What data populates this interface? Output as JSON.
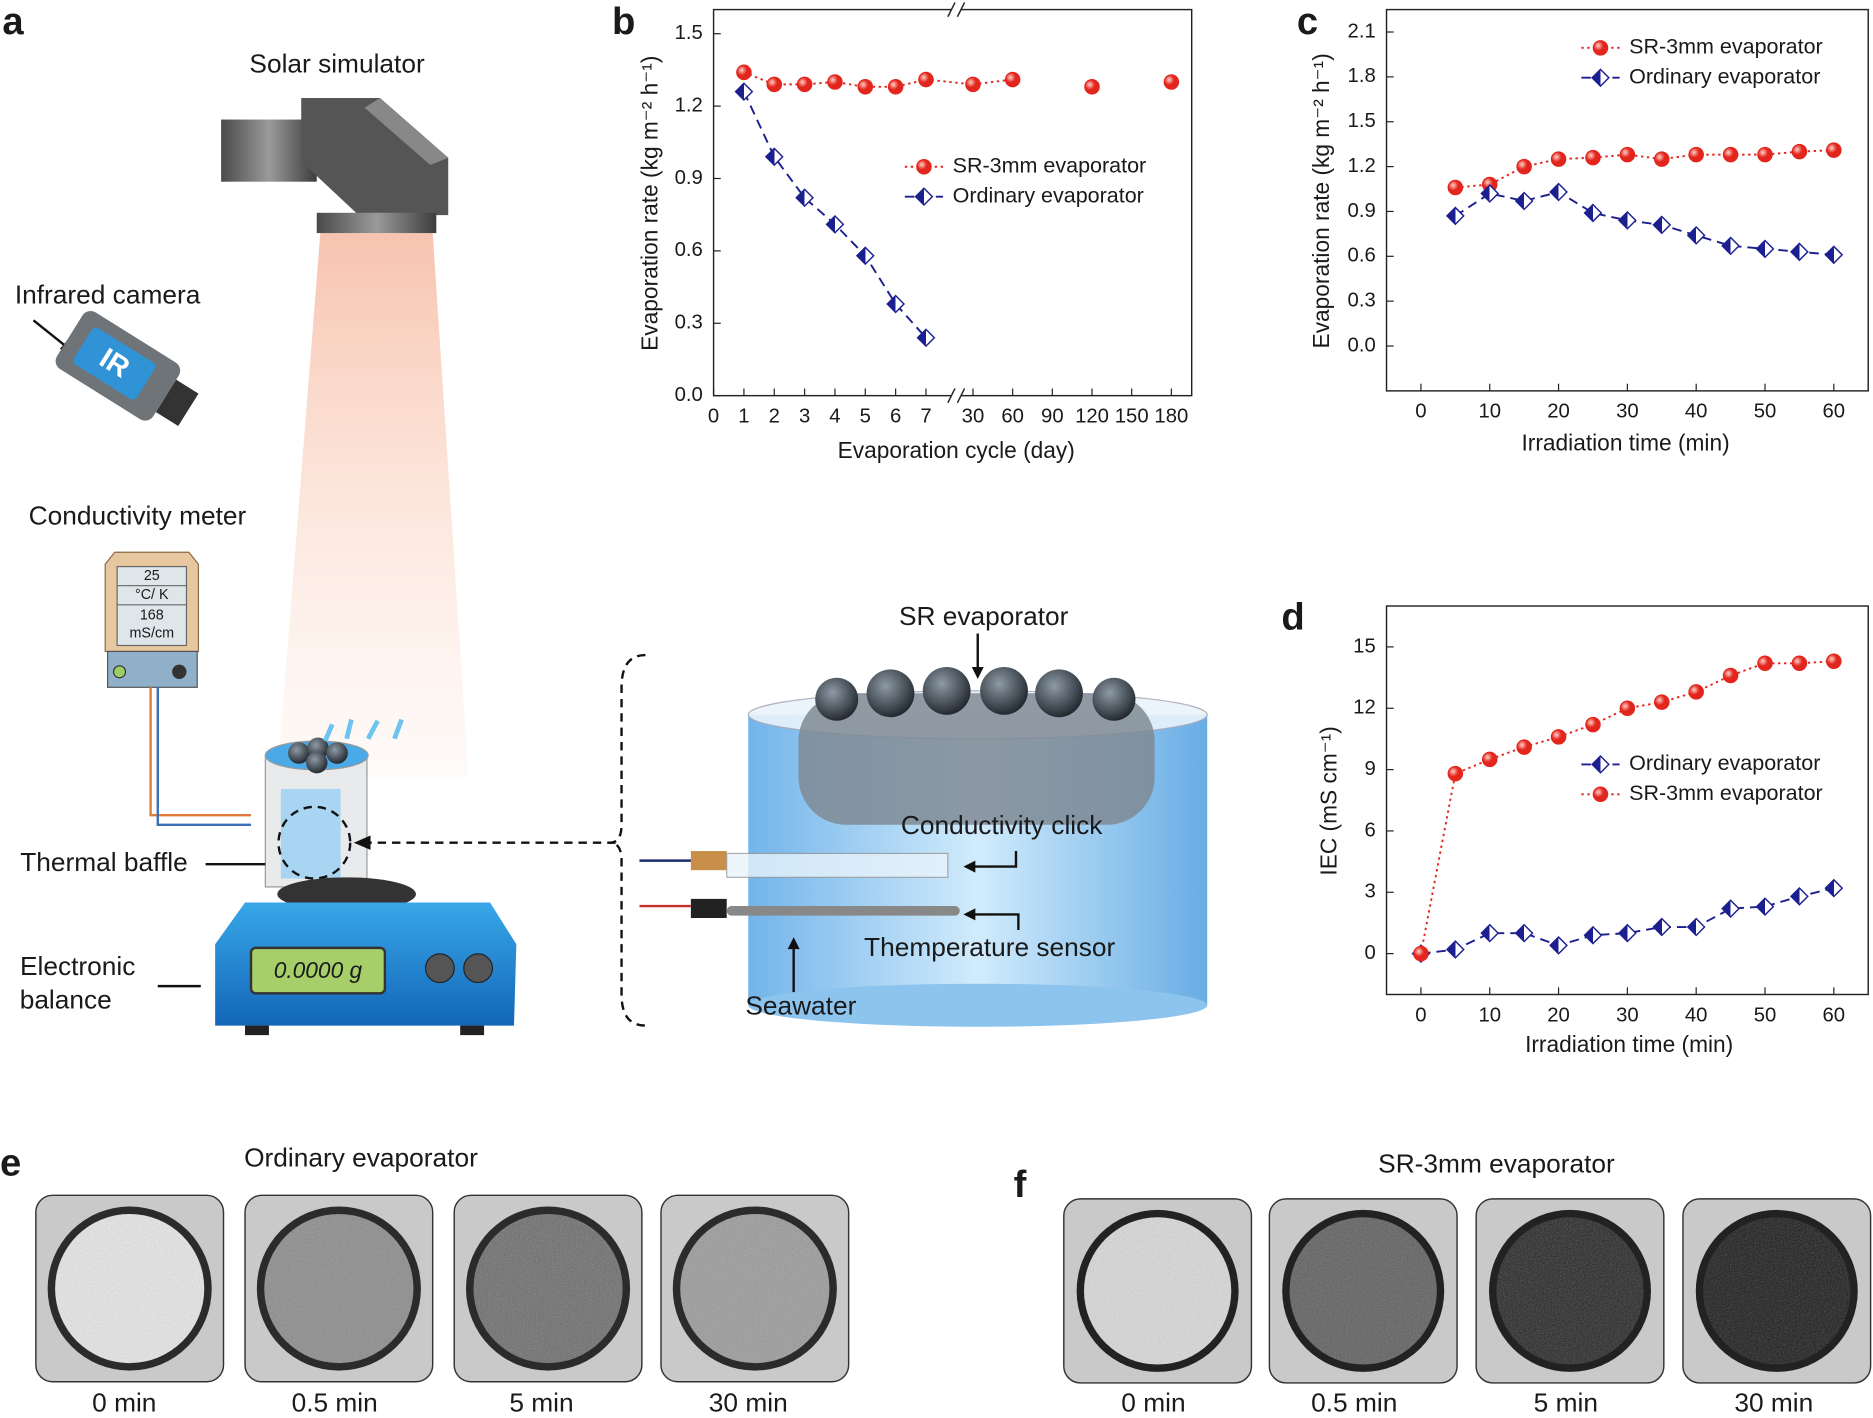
{
  "panel_labels": [
    "a",
    "b",
    "c",
    "d",
    "e",
    "f"
  ],
  "diagram": {
    "solar_simulator": "Solar simulator",
    "infrared_camera": "Infrared camera",
    "camera_badge": "IR",
    "conductivity_meter": "Conductivity meter",
    "meter_screen": [
      "25",
      "°C/ K",
      "168",
      "mS/cm"
    ],
    "thermal_baffle": "Thermal baffle",
    "electronic_balance": [
      "Electronic",
      "balance"
    ],
    "balance_display": "0.0000 g",
    "sr_evaporator": "SR evaporator",
    "conductivity_click": "Conductivity click",
    "temperature_sensor": "Themperature sensor",
    "seawater": "Seawater"
  },
  "photos": {
    "e": {
      "title": "Ordinary evaporator",
      "times": [
        "0 min",
        "0.5 min",
        "5 min",
        "30 min"
      ]
    },
    "f": {
      "title": "SR-3mm evaporator",
      "times": [
        "0 min",
        "0.5 min",
        "5 min",
        "30 min"
      ]
    }
  },
  "chart_data": [
    {
      "type": "line",
      "x_label": "Evaporation cycle (day)",
      "y_label": "Evaporation rate (kg m⁻² h⁻¹)",
      "categories": [
        "0",
        "1",
        "2",
        "3",
        "4",
        "5",
        "6",
        "7",
        "30",
        "60",
        "90",
        "120",
        "150",
        "180"
      ],
      "x_axis_break": true,
      "ylim": [
        0,
        1.6
      ],
      "yticks": [
        {
          "value": 0,
          "label": "0.0"
        },
        0.3,
        0.6,
        0.9,
        1.2,
        1.5
      ],
      "legend": "center right",
      "series": [
        {
          "name": "SR-3mm evaporator",
          "color": "#e3261d",
          "marker": "circle",
          "line_style": "dotted",
          "values": [
            null,
            1.34,
            1.29,
            1.29,
            1.3,
            1.28,
            1.28,
            1.31,
            1.29,
            1.31,
            null,
            1.28,
            null,
            1.3
          ]
        },
        {
          "name": "Ordinary evaporator",
          "color": "#1c1f8f",
          "marker": "diamond",
          "line_style": "dashed",
          "values": [
            null,
            1.26,
            0.99,
            0.82,
            0.71,
            0.58,
            0.38,
            0.24,
            null,
            null,
            null,
            null,
            null,
            null
          ]
        }
      ]
    },
    {
      "type": "line",
      "x_label": "Irradiation time (min)",
      "y_label": "Evaporation rate (kg m⁻² h⁻¹)",
      "x": [
        5,
        10,
        15,
        20,
        25,
        30,
        35,
        40,
        45,
        50,
        55,
        60
      ],
      "xlim": [
        -5,
        65
      ],
      "xticks": [
        0,
        10,
        20,
        30,
        40,
        50,
        60
      ],
      "ylim": [
        -0.3,
        2.25
      ],
      "yticks": [
        {
          "value": 0,
          "label": "0.0"
        },
        0.3,
        0.6,
        0.9,
        1.2,
        1.5,
        1.8,
        2.1
      ],
      "legend": "upper right",
      "series": [
        {
          "name": "SR-3mm evaporator",
          "color": "#e3261d",
          "marker": "circle",
          "line_style": "dotted",
          "values": [
            1.06,
            1.08,
            1.2,
            1.25,
            1.26,
            1.28,
            1.25,
            1.28,
            1.28,
            1.28,
            1.3,
            1.31
          ]
        },
        {
          "name": "Ordinary evaporator",
          "color": "#1c1f8f",
          "marker": "diamond",
          "line_style": "dashed",
          "values": [
            0.87,
            1.02,
            0.97,
            1.03,
            0.89,
            0.84,
            0.81,
            0.74,
            0.67,
            0.65,
            0.63,
            0.61
          ]
        }
      ]
    },
    {
      "type": "line",
      "x_label": "Irradiation time (min)",
      "y_label": "IEC (mS cm⁻¹)",
      "x": [
        0,
        5,
        10,
        15,
        20,
        25,
        30,
        35,
        40,
        45,
        50,
        55,
        60
      ],
      "xlim": [
        -5,
        65
      ],
      "xticks": [
        0,
        10,
        20,
        30,
        40,
        50,
        60
      ],
      "ylim": [
        -2,
        17
      ],
      "yticks": [
        0,
        3,
        6,
        9,
        12,
        15
      ],
      "legend": "center right",
      "series": [
        {
          "name": "Ordinary evaporator",
          "color": "#1c1f8f",
          "marker": "diamond",
          "line_style": "dashed",
          "values": [
            0,
            0.2,
            1.0,
            1.0,
            0.4,
            0.9,
            1.0,
            1.3,
            1.3,
            2.2,
            2.3,
            2.8,
            3.2
          ]
        },
        {
          "name": "SR-3mm evaporator",
          "color": "#e3261d",
          "marker": "circle",
          "line_style": "dotted",
          "values": [
            0,
            8.8,
            9.5,
            10.1,
            10.6,
            11.2,
            12.0,
            12.3,
            12.8,
            13.6,
            14.2,
            14.2,
            14.3
          ]
        }
      ]
    }
  ]
}
